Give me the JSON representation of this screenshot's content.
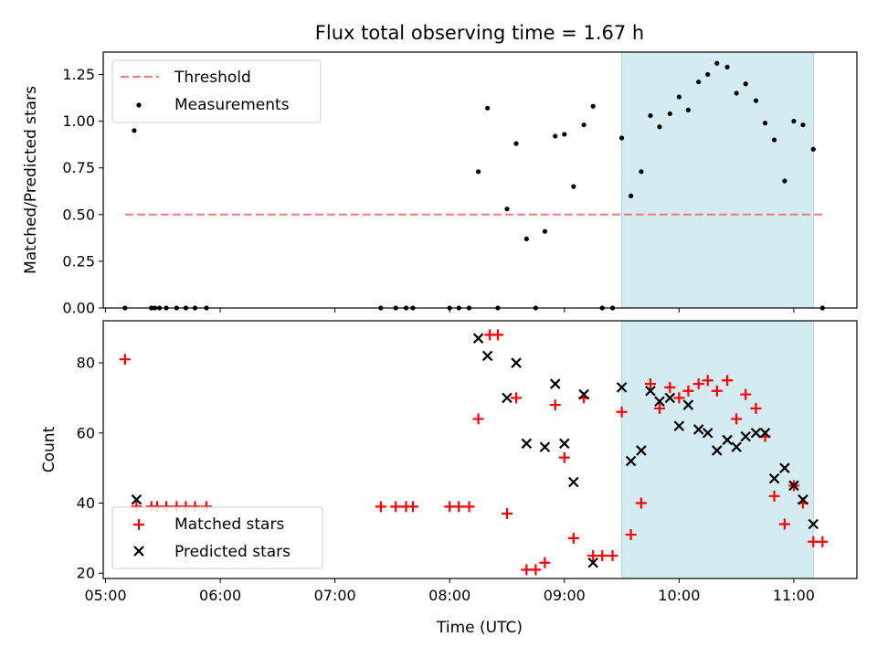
{
  "chart_data": {
    "title": "Flux total observing time = 1.67 h",
    "xlabel": "Time (UTC)",
    "x_tick_labels": [
      "05:00",
      "06:00",
      "07:00",
      "08:00",
      "09:00",
      "10:00",
      "11:00"
    ],
    "x_tick_values": [
      5.0,
      6.0,
      7.0,
      8.0,
      9.0,
      10.0,
      11.0
    ],
    "xlim": [
      4.98,
      11.55
    ],
    "highlight_span": {
      "x": [
        9.5,
        11.17
      ],
      "color": "#d4ebf1",
      "edge": "#a8d3df"
    },
    "panels": [
      {
        "type": "scatter",
        "ylabel": "Matched/Predicted stars",
        "ylim": [
          0.0,
          1.37
        ],
        "y_tick_values": [
          0.0,
          0.25,
          0.5,
          0.75,
          1.0,
          1.25
        ],
        "y_tick_labels": [
          "0.00",
          "0.25",
          "0.50",
          "0.75",
          "1.00",
          "1.25"
        ],
        "threshold": {
          "name": "Threshold",
          "y": 0.5,
          "x": [
            5.17,
            11.25
          ],
          "color": "#f07a7a"
        },
        "series": [
          {
            "name": "Measurements",
            "marker": "dot",
            "color": "#000000",
            "points": [
              [
                5.17,
                0.0
              ],
              [
                5.25,
                0.95
              ],
              [
                5.4,
                0.0
              ],
              [
                5.43,
                0.0
              ],
              [
                5.47,
                0.0
              ],
              [
                5.53,
                0.0
              ],
              [
                5.62,
                0.0
              ],
              [
                5.7,
                0.0
              ],
              [
                5.78,
                0.0
              ],
              [
                5.88,
                0.0
              ],
              [
                7.4,
                0.0
              ],
              [
                7.53,
                0.0
              ],
              [
                7.62,
                0.0
              ],
              [
                7.68,
                0.0
              ],
              [
                8.0,
                0.0
              ],
              [
                8.08,
                0.0
              ],
              [
                8.17,
                0.0
              ],
              [
                8.25,
                0.73
              ],
              [
                8.33,
                1.07
              ],
              [
                8.42,
                0.0
              ],
              [
                8.5,
                0.53
              ],
              [
                8.58,
                0.88
              ],
              [
                8.67,
                0.37
              ],
              [
                8.75,
                0.0
              ],
              [
                8.83,
                0.41
              ],
              [
                8.92,
                0.92
              ],
              [
                9.0,
                0.93
              ],
              [
                9.08,
                0.65
              ],
              [
                9.17,
                0.98
              ],
              [
                9.25,
                1.08
              ],
              [
                9.33,
                0.0
              ],
              [
                9.42,
                0.0
              ],
              [
                9.5,
                0.91
              ],
              [
                9.58,
                0.6
              ],
              [
                9.67,
                0.73
              ],
              [
                9.75,
                1.03
              ],
              [
                9.83,
                0.97
              ],
              [
                9.92,
                1.04
              ],
              [
                10.0,
                1.13
              ],
              [
                10.08,
                1.06
              ],
              [
                10.17,
                1.21
              ],
              [
                10.25,
                1.25
              ],
              [
                10.33,
                1.31
              ],
              [
                10.42,
                1.29
              ],
              [
                10.5,
                1.15
              ],
              [
                10.58,
                1.2
              ],
              [
                10.67,
                1.11
              ],
              [
                10.75,
                0.99
              ],
              [
                10.83,
                0.9
              ],
              [
                10.92,
                0.68
              ],
              [
                11.0,
                1.0
              ],
              [
                11.08,
                0.98
              ],
              [
                11.17,
                0.85
              ],
              [
                11.25,
                0.0
              ]
            ]
          }
        ],
        "legend": {
          "placement": "upper-left",
          "entries": [
            "Threshold",
            "Measurements"
          ]
        }
      },
      {
        "type": "scatter",
        "ylabel": "Count",
        "ylim": [
          18.5,
          92.0
        ],
        "y_tick_values": [
          20,
          40,
          60,
          80
        ],
        "y_tick_labels": [
          "20",
          "40",
          "60",
          "80"
        ],
        "series": [
          {
            "name": "Matched stars",
            "marker": "plus",
            "color": "#ff0000",
            "points": [
              [
                5.17,
                81
              ],
              [
                5.27,
                39
              ],
              [
                5.4,
                39
              ],
              [
                5.45,
                39
              ],
              [
                5.53,
                39
              ],
              [
                5.62,
                39
              ],
              [
                5.7,
                39
              ],
              [
                5.78,
                39
              ],
              [
                5.88,
                39
              ],
              [
                7.4,
                39
              ],
              [
                7.53,
                39
              ],
              [
                7.62,
                39
              ],
              [
                7.68,
                39
              ],
              [
                8.0,
                39
              ],
              [
                8.08,
                39
              ],
              [
                8.17,
                39
              ],
              [
                8.25,
                64
              ],
              [
                8.35,
                88
              ],
              [
                8.42,
                88
              ],
              [
                8.5,
                37
              ],
              [
                8.58,
                70
              ],
              [
                8.67,
                21
              ],
              [
                8.75,
                21
              ],
              [
                8.83,
                23
              ],
              [
                8.92,
                68
              ],
              [
                9.0,
                53
              ],
              [
                9.08,
                30
              ],
              [
                9.17,
                70
              ],
              [
                9.25,
                25
              ],
              [
                9.33,
                25
              ],
              [
                9.42,
                25
              ],
              [
                9.5,
                66
              ],
              [
                9.58,
                31
              ],
              [
                9.67,
                40
              ],
              [
                9.75,
                74
              ],
              [
                9.83,
                67
              ],
              [
                9.92,
                73
              ],
              [
                10.0,
                70
              ],
              [
                10.08,
                72
              ],
              [
                10.17,
                74
              ],
              [
                10.25,
                75
              ],
              [
                10.33,
                72
              ],
              [
                10.42,
                75
              ],
              [
                10.5,
                64
              ],
              [
                10.58,
                71
              ],
              [
                10.67,
                67
              ],
              [
                10.75,
                59
              ],
              [
                10.83,
                42
              ],
              [
                10.92,
                34
              ],
              [
                11.0,
                45
              ],
              [
                11.08,
                40
              ],
              [
                11.17,
                29
              ],
              [
                11.25,
                29
              ]
            ]
          },
          {
            "name": "Predicted stars",
            "marker": "cross",
            "color": "#000000",
            "points": [
              [
                5.27,
                41
              ],
              [
                8.25,
                87
              ],
              [
                8.33,
                82
              ],
              [
                8.5,
                70
              ],
              [
                8.58,
                80
              ],
              [
                8.67,
                57
              ],
              [
                8.83,
                56
              ],
              [
                8.92,
                74
              ],
              [
                9.0,
                57
              ],
              [
                9.08,
                46
              ],
              [
                9.17,
                71
              ],
              [
                9.25,
                23
              ],
              [
                9.5,
                73
              ],
              [
                9.58,
                52
              ],
              [
                9.67,
                55
              ],
              [
                9.75,
                72
              ],
              [
                9.83,
                69
              ],
              [
                9.92,
                70
              ],
              [
                10.0,
                62
              ],
              [
                10.08,
                68
              ],
              [
                10.17,
                61
              ],
              [
                10.25,
                60
              ],
              [
                10.33,
                55
              ],
              [
                10.42,
                58
              ],
              [
                10.5,
                56
              ],
              [
                10.58,
                59
              ],
              [
                10.67,
                60
              ],
              [
                10.75,
                60
              ],
              [
                10.83,
                47
              ],
              [
                10.92,
                50
              ],
              [
                11.0,
                45
              ],
              [
                11.08,
                41
              ],
              [
                11.17,
                34
              ]
            ]
          }
        ],
        "legend": {
          "placement": "lower-left",
          "entries": [
            "Matched stars",
            "Predicted stars"
          ]
        }
      }
    ]
  }
}
